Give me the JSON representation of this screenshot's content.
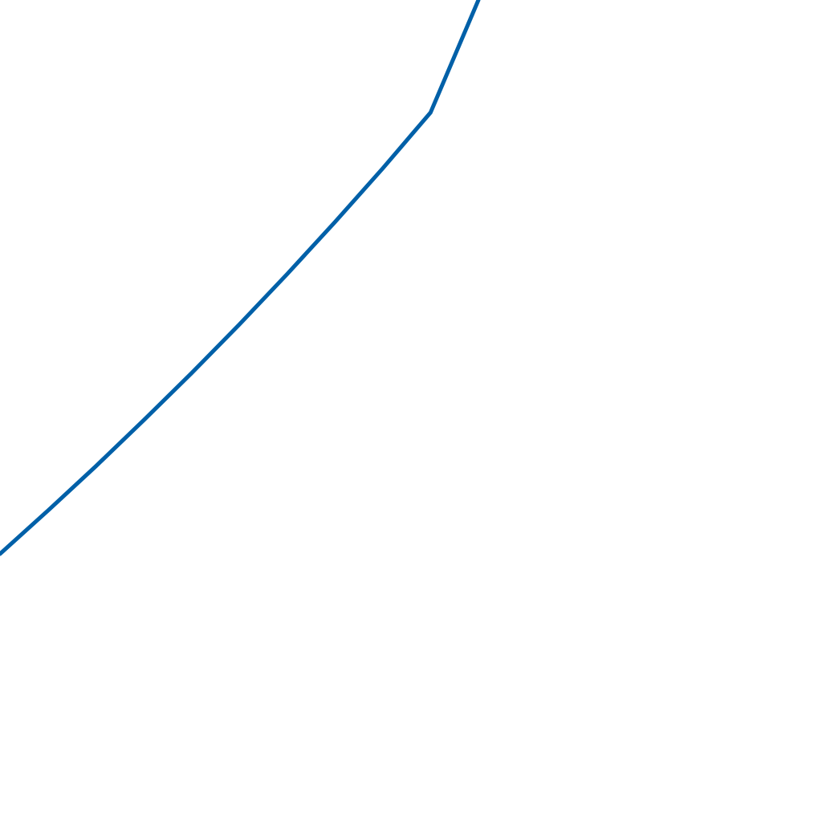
{
  "chart_data": {
    "type": "line",
    "series": [
      {
        "color": "#0060a8",
        "x": [
          0.0,
          0.1,
          0.2,
          0.3,
          0.4,
          0.5,
          0.6,
          0.7,
          0.8,
          0.9,
          1.0
        ],
        "y": [
          0.0,
          0.078,
          0.158,
          0.241,
          0.326,
          0.414,
          0.505,
          0.599,
          0.696,
          0.797,
          1.0
        ]
      }
    ],
    "visible_tick_labels": [
      {
        "axis": "x",
        "text": ""
      },
      {
        "axis": "y",
        "text": ""
      }
    ],
    "grid": false,
    "legend": "none"
  }
}
